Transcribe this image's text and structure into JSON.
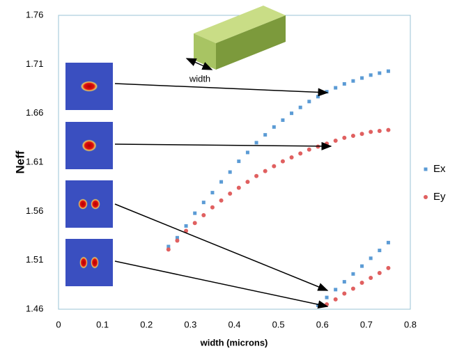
{
  "chart_data": {
    "type": "scatter",
    "x_label": "width (microns)",
    "y_label": "Neff",
    "annotation": "width",
    "xlim": [
      0,
      0.8
    ],
    "xticks": [
      0,
      0.1,
      0.2,
      0.3,
      0.4,
      0.5,
      0.6,
      0.7,
      0.8
    ],
    "ylim": [
      1.46,
      1.76
    ],
    "yticks": [
      1.46,
      1.51,
      1.56,
      1.61,
      1.66,
      1.71,
      1.76
    ],
    "series": [
      {
        "name": "Ex",
        "color": "#5b9bd5",
        "marker": "square",
        "x": [
          0.25,
          0.27,
          0.29,
          0.31,
          0.33,
          0.35,
          0.37,
          0.39,
          0.41,
          0.43,
          0.45,
          0.47,
          0.49,
          0.51,
          0.53,
          0.55,
          0.57,
          0.59,
          0.61,
          0.63,
          0.65,
          0.67,
          0.69,
          0.71,
          0.73,
          0.75,
          0.59,
          0.61,
          0.63,
          0.65,
          0.67,
          0.69,
          0.71,
          0.73,
          0.75
        ],
        "values": [
          1.524,
          1.533,
          1.545,
          1.558,
          1.569,
          1.579,
          1.59,
          1.6,
          1.611,
          1.62,
          1.63,
          1.638,
          1.646,
          1.653,
          1.66,
          1.666,
          1.672,
          1.677,
          1.682,
          1.686,
          1.69,
          1.693,
          1.696,
          1.699,
          1.701,
          1.703,
          1.464,
          1.472,
          1.48,
          1.488,
          1.496,
          1.504,
          1.512,
          1.52,
          1.528
        ]
      },
      {
        "name": "Ey",
        "color": "#e06060",
        "marker": "circle",
        "x": [
          0.25,
          0.27,
          0.29,
          0.31,
          0.33,
          0.35,
          0.37,
          0.39,
          0.41,
          0.43,
          0.45,
          0.47,
          0.49,
          0.51,
          0.53,
          0.55,
          0.57,
          0.59,
          0.61,
          0.63,
          0.65,
          0.67,
          0.69,
          0.71,
          0.73,
          0.75,
          0.61,
          0.63,
          0.65,
          0.67,
          0.69,
          0.71,
          0.73,
          0.75
        ],
        "values": [
          1.521,
          1.53,
          1.54,
          1.548,
          1.556,
          1.564,
          1.571,
          1.578,
          1.584,
          1.59,
          1.596,
          1.601,
          1.606,
          1.611,
          1.615,
          1.619,
          1.623,
          1.626,
          1.629,
          1.632,
          1.635,
          1.637,
          1.639,
          1.641,
          1.642,
          1.643,
          1.465,
          1.47,
          1.476,
          1.481,
          1.487,
          1.492,
          1.497,
          1.502
        ]
      }
    ]
  }
}
